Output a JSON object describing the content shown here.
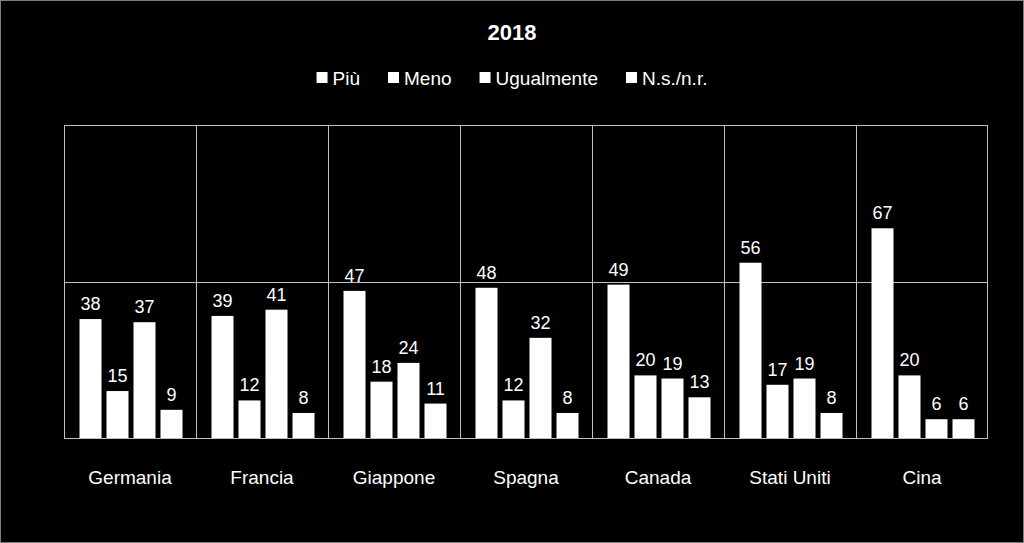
{
  "chart_data": {
    "type": "bar",
    "title": "2018",
    "categories": [
      "Germania",
      "Francia",
      "Giappone",
      "Spagna",
      "Canada",
      "Stati Uniti",
      "Cina"
    ],
    "series": [
      {
        "name": "Più",
        "color": "#ffffff",
        "values": [
          38,
          39,
          47,
          48,
          49,
          56,
          67
        ]
      },
      {
        "name": "Meno",
        "color": "#ffffff",
        "values": [
          15,
          12,
          18,
          12,
          20,
          17,
          20
        ]
      },
      {
        "name": "Ugualmente",
        "color": "#ffffff",
        "values": [
          37,
          41,
          24,
          32,
          19,
          19,
          6
        ]
      },
      {
        "name": "N.s./n.r.",
        "color": "#ffffff",
        "values": [
          9,
          8,
          11,
          8,
          13,
          8,
          6
        ]
      }
    ],
    "ylim": [
      0,
      100
    ],
    "yticks": [
      0,
      50,
      100
    ],
    "grid": true,
    "legend": "top",
    "data_labels": true,
    "tick_labels": "x"
  }
}
